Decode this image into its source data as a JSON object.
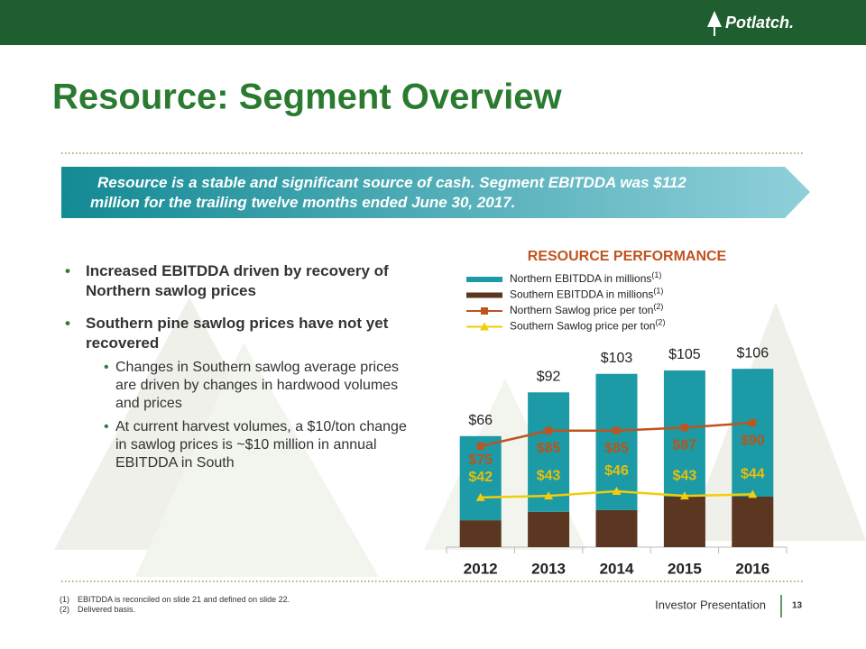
{
  "header": {
    "logo": "Potlatch.",
    "title": "Resource: Segment Overview"
  },
  "banner": "Resource is a stable and significant source of cash. Segment EBITDDA was $112 million for the trailing twelve months ended June 30, 2017.",
  "bullets": [
    {
      "text": "Increased EBITDDA driven by recovery of Northern sawlog prices",
      "sub": []
    },
    {
      "text": "Southern pine sawlog prices have not yet recovered",
      "sub": [
        "Changes in Southern sawlog average prices are driven by changes in hardwood volumes and prices",
        "At current harvest volumes, a $10/ton change in sawlog prices is ~$10 million in annual EBITDDA in South"
      ]
    }
  ],
  "chart_data": {
    "type": "bar",
    "title": "RESOURCE PERFORMANCE",
    "categories": [
      "2012",
      "2013",
      "2014",
      "2015",
      "2016"
    ],
    "series": [
      {
        "name": "Northern EBITDDA in millions",
        "note": "(1)",
        "type": "bar",
        "color": "#1c9aa6",
        "values": [
          50,
          71,
          81,
          75,
          76
        ]
      },
      {
        "name": "Southern EBITDDA in millions",
        "note": "(1)",
        "type": "bar",
        "color": "#5b3620",
        "values": [
          16,
          21,
          22,
          30,
          30
        ]
      },
      {
        "name": "Northern Sawlog price per ton",
        "note": "(2)",
        "type": "line",
        "axis": "y2",
        "color": "#c0541f",
        "label_color": "#b5561c",
        "marker": "square",
        "values": [
          75,
          85,
          85,
          87,
          90
        ],
        "value_labels": [
          "$75",
          "$85",
          "$85",
          "$87",
          "$90"
        ]
      },
      {
        "name": "Southern Sawlog price per ton",
        "note": "(2)",
        "type": "line",
        "axis": "y2",
        "color": "#f2cd0a",
        "label_color": "#e3c00e",
        "marker": "triangle",
        "values": [
          42,
          43,
          46,
          43,
          44
        ],
        "value_labels": [
          "$42",
          "$43",
          "$46",
          "$43",
          "$44"
        ]
      }
    ],
    "totals": {
      "values": [
        66,
        92,
        103,
        105,
        106
      ],
      "value_labels": [
        "$66",
        "$92",
        "$103",
        "$105",
        "$106"
      ]
    },
    "ylim": [
      0,
      120
    ],
    "y2lim": [
      10,
      140
    ]
  },
  "footnotes": [
    {
      "marker": "(1)",
      "text": "EBITDDA is reconciled on slide 21 and defined on slide 22."
    },
    {
      "marker": "(2)",
      "text": "Delivered basis."
    }
  ],
  "footer": {
    "label": "Investor Presentation",
    "page": "13"
  }
}
